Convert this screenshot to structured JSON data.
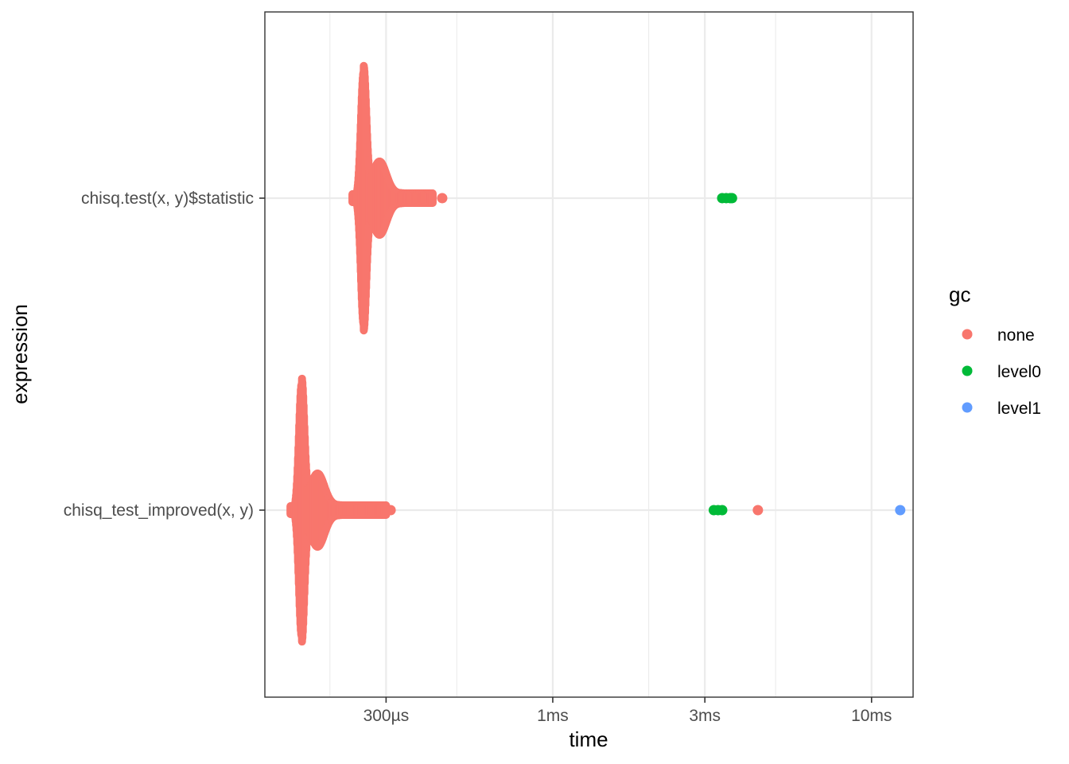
{
  "chart_data": {
    "type": "scatter",
    "title": "",
    "xlabel": "time",
    "ylabel": "expression",
    "x_scale": "log10",
    "x_unit": "seconds",
    "xlim": [
      0.000125,
      0.0135
    ],
    "x_ticks": [
      {
        "value": 0.0003,
        "label": "300µs"
      },
      {
        "value": 0.001,
        "label": "1ms"
      },
      {
        "value": 0.003,
        "label": "3ms"
      },
      {
        "value": 0.01,
        "label": "10ms"
      }
    ],
    "x_minor_ticks": [
      0.0002,
      0.0005,
      0.002,
      0.005
    ],
    "categories": [
      "chisq.test(x, y)$statistic",
      "chisq_test_improved(x, y)"
    ],
    "grid": true,
    "legend": {
      "title": "gc",
      "position": "right",
      "entries": [
        {
          "name": "none",
          "color": "#F8766D"
        },
        {
          "name": "level0",
          "color": "#00BA38"
        },
        {
          "name": "level1",
          "color": "#619CFF"
        }
      ]
    },
    "series": [
      {
        "category": "chisq.test(x, y)$statistic",
        "main_cluster": {
          "gc": "none",
          "mode": 0.000255,
          "spread": 4e-06,
          "tail_max": 0.00042
        },
        "points": [
          {
            "x": 0.00045,
            "gc": "none"
          },
          {
            "x": 0.0034,
            "gc": "level0"
          },
          {
            "x": 0.0035,
            "gc": "level0"
          },
          {
            "x": 0.0036,
            "gc": "level0"
          },
          {
            "x": 0.00365,
            "gc": "level0"
          }
        ]
      },
      {
        "category": "chisq_test_improved(x, y)",
        "main_cluster": {
          "gc": "none",
          "mode": 0.000163,
          "spread": 4e-06,
          "tail_max": 0.0003
        },
        "points": [
          {
            "x": 0.00031,
            "gc": "none"
          },
          {
            "x": 0.0032,
            "gc": "level0"
          },
          {
            "x": 0.0033,
            "gc": "level0"
          },
          {
            "x": 0.0034,
            "gc": "level0"
          },
          {
            "x": 0.0044,
            "gc": "none"
          },
          {
            "x": 0.0123,
            "gc": "level1"
          }
        ]
      }
    ]
  }
}
